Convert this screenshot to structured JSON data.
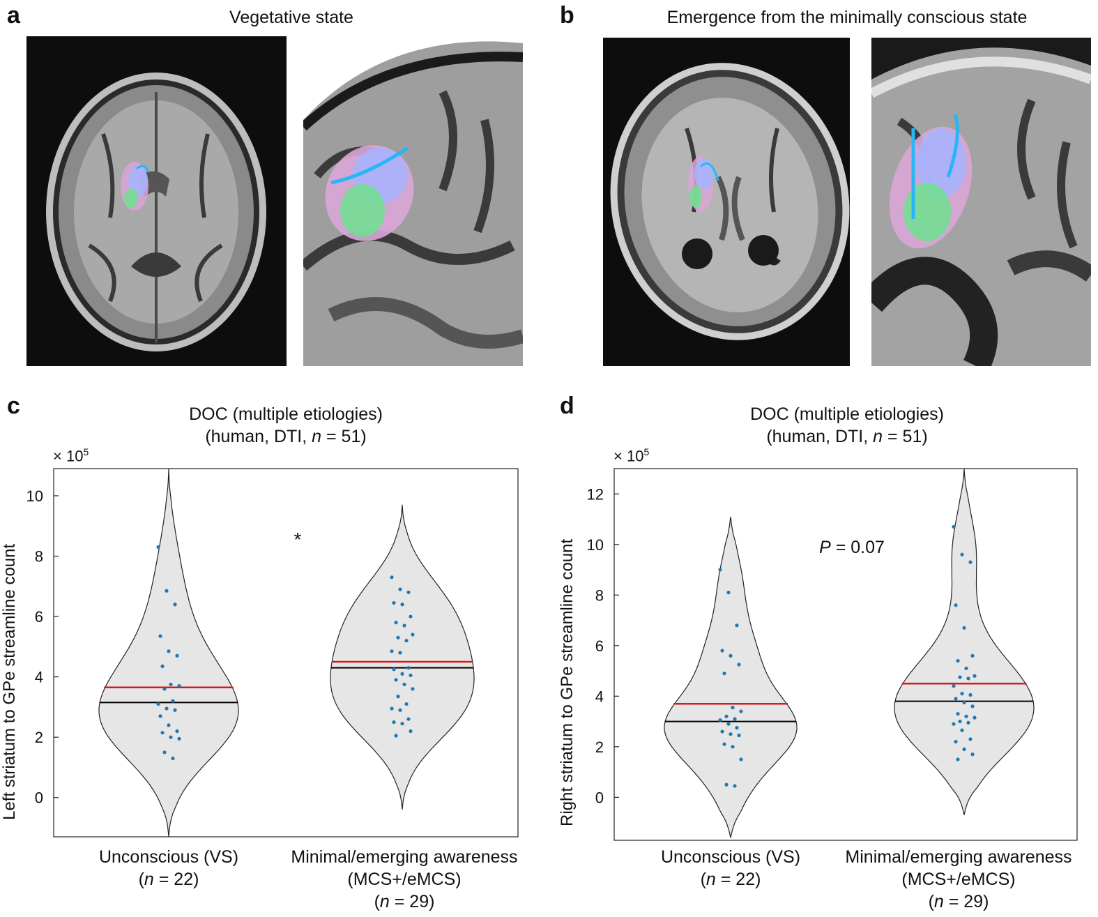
{
  "panels": {
    "a": {
      "letter": "a",
      "title": "Vegetative state"
    },
    "b": {
      "letter": "b",
      "title": "Emergence from the minimally conscious state"
    },
    "c": {
      "letter": "c"
    },
    "d": {
      "letter": "d"
    }
  },
  "colors": {
    "mean": "#d7191c",
    "median": "#000000",
    "points": "#1f78b4",
    "violin": "#e6e6e6"
  },
  "chart_data": [
    {
      "type": "violin",
      "title_line1": "DOC (multiple etiologies)",
      "title_line2_pre": "(human, DTI, ",
      "title_line2_n": "n",
      "title_line2_post": " = 51)",
      "ylabel": "Left striatum to GPe streamline count",
      "multiplier_base": "× 10",
      "multiplier_exp": "5",
      "ylim": [
        -1.3,
        10.9
      ],
      "yticks": [
        0,
        2,
        4,
        6,
        8,
        10
      ],
      "annotation": "*",
      "categories": [
        {
          "label": "Unconscious (VS)",
          "n_text": "(n = 22)",
          "mean": 3.65,
          "median": 3.15,
          "violin_range": [
            -1.3,
            10.9
          ],
          "points": [
            8.3,
            6.85,
            6.4,
            5.35,
            4.85,
            4.7,
            4.35,
            3.75,
            3.7,
            3.6,
            3.2,
            3.1,
            2.95,
            2.9,
            2.7,
            2.4,
            2.2,
            2.15,
            2.0,
            1.95,
            1.5,
            1.3
          ]
        },
        {
          "label": "Minimal/emerging awareness",
          "sublabel": "(MCS+/eMCS)",
          "n_text": "(n = 29)",
          "mean": 4.5,
          "median": 4.3,
          "violin_range": [
            -0.4,
            9.7
          ],
          "points": [
            7.3,
            6.9,
            6.8,
            6.45,
            6.4,
            6.0,
            5.8,
            5.7,
            5.4,
            5.3,
            5.2,
            4.85,
            4.8,
            4.3,
            4.25,
            4.1,
            4.05,
            3.9,
            3.75,
            3.6,
            3.35,
            3.1,
            2.95,
            2.9,
            2.6,
            2.5,
            2.45,
            2.2,
            2.05
          ]
        }
      ]
    },
    {
      "type": "violin",
      "title_line1": "DOC (multiple etiologies)",
      "title_line2_pre": "(human, DTI, ",
      "title_line2_n": "n",
      "title_line2_post": " = 51)",
      "ylabel": "Right striatum to GPe streamline count",
      "multiplier_base": "× 10",
      "multiplier_exp": "5",
      "ylim": [
        -1.7,
        13.0
      ],
      "yticks": [
        0,
        2,
        4,
        6,
        8,
        10,
        12
      ],
      "annotation_p": "P",
      "annotation_rest": " = 0.07",
      "categories": [
        {
          "label": "Unconscious (VS)",
          "n_text": "(n = 22)",
          "mean": 3.7,
          "median": 3.0,
          "violin_range": [
            -1.6,
            11.1
          ],
          "points": [
            9.0,
            8.1,
            6.8,
            5.8,
            5.6,
            5.25,
            4.9,
            3.55,
            3.4,
            3.2,
            3.1,
            3.05,
            2.9,
            2.75,
            2.6,
            2.5,
            2.45,
            2.1,
            2.0,
            1.5,
            0.5,
            0.45
          ]
        },
        {
          "label": "Minimal/emerging awareness",
          "sublabel": "(MCS+/eMCS)",
          "n_text": "(n = 29)",
          "mean": 4.5,
          "median": 3.8,
          "violin_range": [
            -0.7,
            13.0
          ],
          "points": [
            10.7,
            9.6,
            9.3,
            7.6,
            6.7,
            5.6,
            5.4,
            5.1,
            4.8,
            4.75,
            4.7,
            4.4,
            4.1,
            4.05,
            3.9,
            3.75,
            3.6,
            3.3,
            3.2,
            3.15,
            3.0,
            2.95,
            2.9,
            2.65,
            2.3,
            2.2,
            1.9,
            1.7,
            1.5
          ]
        }
      ]
    }
  ]
}
